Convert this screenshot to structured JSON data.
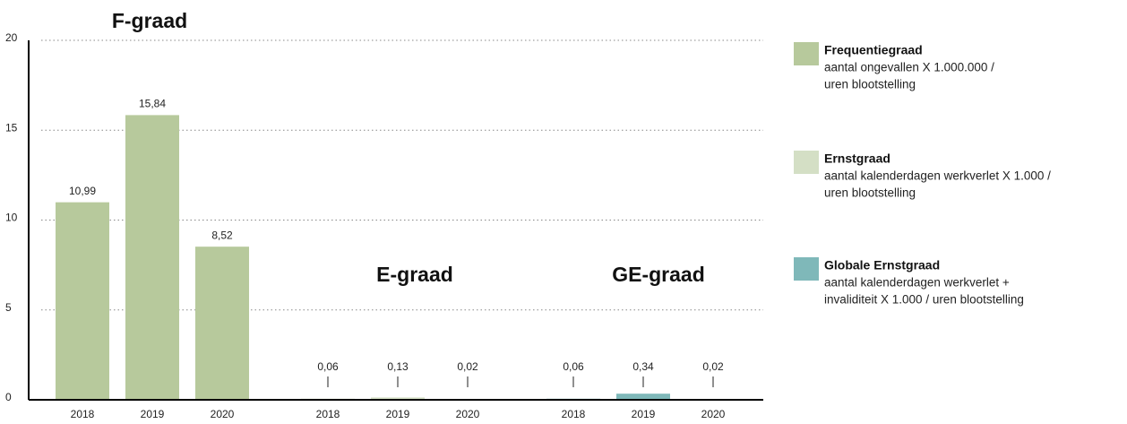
{
  "chart_data": {
    "type": "bar",
    "ylim": [
      0,
      20
    ],
    "yticks": [
      0,
      5,
      10,
      15,
      20
    ],
    "grid": true,
    "series": [
      {
        "name": "Frequentiegraad",
        "description": [
          "aantal ongevallen X 1.000.000 /",
          "uren blootstelling"
        ],
        "group_title": "F-graad",
        "color": "#b7c99c",
        "categories": [
          "2018",
          "2019",
          "2020"
        ],
        "values": [
          10.99,
          15.84,
          8.52
        ],
        "value_labels": [
          "10,99",
          "15,84",
          "8,52"
        ]
      },
      {
        "name": "Ernstgraad",
        "description": [
          "aantal kalenderdagen werkverlet X 1.000 /",
          "uren blootstelling"
        ],
        "group_title": "E-graad",
        "color": "#d4dfc5",
        "categories": [
          "2018",
          "2019",
          "2020"
        ],
        "values": [
          0.06,
          0.13,
          0.02
        ],
        "value_labels": [
          "0,06",
          "0,13",
          "0,02"
        ]
      },
      {
        "name": "Globale Ernstgraad",
        "description": [
          "aantal kalenderdagen werkverlet +",
          "invaliditeit  X 1.000 / uren blootstelling"
        ],
        "group_title": "GE-graad",
        "color": "#7fb8b9",
        "categories": [
          "2018",
          "2019",
          "2020"
        ],
        "values": [
          0.06,
          0.34,
          0.02
        ],
        "value_labels": [
          "0,06",
          "0,34",
          "0,02"
        ]
      }
    ]
  }
}
